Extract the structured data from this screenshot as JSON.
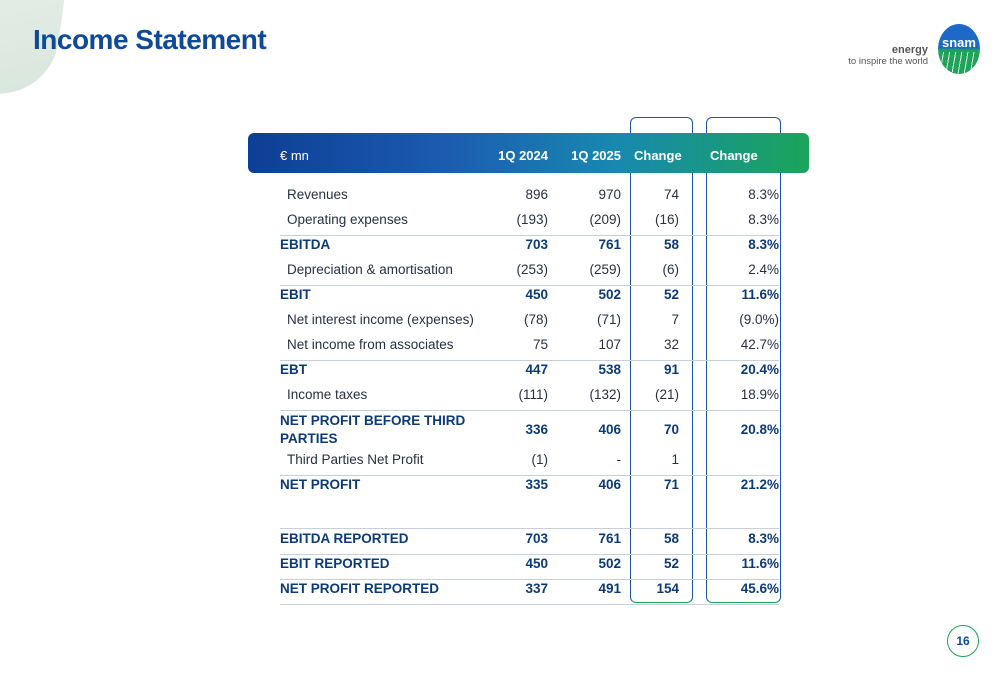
{
  "title": "Income Statement",
  "brand": {
    "tagline_top": "energy",
    "tagline_bottom": "to inspire the world",
    "logo_word": "snam",
    "colors": {
      "blue": "#1e69c8",
      "green": "#1fa35a",
      "title": "#0d4a9a"
    }
  },
  "table": {
    "headers": [
      "€ mn",
      "1Q 2024",
      "1Q 2025",
      "Change",
      "Change %"
    ],
    "rows": [
      {
        "label": "Revenues",
        "q2024": "896",
        "q2025": "970",
        "change": "74",
        "change_pct": "8.3%",
        "bold": false
      },
      {
        "label": "Operating expenses",
        "q2024": "(193)",
        "q2025": "(209)",
        "change": "(16)",
        "change_pct": "8.3%",
        "bold": false
      },
      {
        "label": "EBITDA",
        "q2024": "703",
        "q2025": "761",
        "change": "58",
        "change_pct": "8.3%",
        "bold": true
      },
      {
        "label": "Depreciation & amortisation",
        "q2024": "(253)",
        "q2025": "(259)",
        "change": "(6)",
        "change_pct": "2.4%",
        "bold": false
      },
      {
        "label": "EBIT",
        "q2024": "450",
        "q2025": "502",
        "change": "52",
        "change_pct": "11.6%",
        "bold": true
      },
      {
        "label": "Net interest income (expenses)",
        "q2024": "(78)",
        "q2025": "(71)",
        "change": "7",
        "change_pct": "(9.0%)",
        "bold": false
      },
      {
        "label": "Net income from associates",
        "q2024": "75",
        "q2025": "107",
        "change": "32",
        "change_pct": "42.7%",
        "bold": false
      },
      {
        "label": "EBT",
        "q2024": "447",
        "q2025": "538",
        "change": "91",
        "change_pct": "20.4%",
        "bold": true
      },
      {
        "label": "Income taxes",
        "q2024": "(111)",
        "q2025": "(132)",
        "change": "(21)",
        "change_pct": "18.9%",
        "bold": false
      },
      {
        "label": "NET PROFIT BEFORE THIRD PARTIES",
        "q2024": "336",
        "q2025": "406",
        "change": "70",
        "change_pct": "20.8%",
        "bold": true
      },
      {
        "label": "Third Parties Net Profit",
        "q2024": "(1)",
        "q2025": "-",
        "change": "1",
        "change_pct": "",
        "bold": false
      },
      {
        "label": "NET PROFIT",
        "q2024": "335",
        "q2025": "406",
        "change": "71",
        "change_pct": "21.2%",
        "bold": true
      },
      {
        "label": "EBITDA REPORTED",
        "q2024": "703",
        "q2025": "761",
        "change": "58",
        "change_pct": "8.3%",
        "bold": true
      },
      {
        "label": "EBIT REPORTED",
        "q2024": "450",
        "q2025": "502",
        "change": "52",
        "change_pct": "11.6%",
        "bold": true
      },
      {
        "label": "NET PROFIT REPORTED",
        "q2024": "337",
        "q2025": "491",
        "change": "154",
        "change_pct": "45.6%",
        "bold": true
      }
    ]
  },
  "page_number": "16"
}
